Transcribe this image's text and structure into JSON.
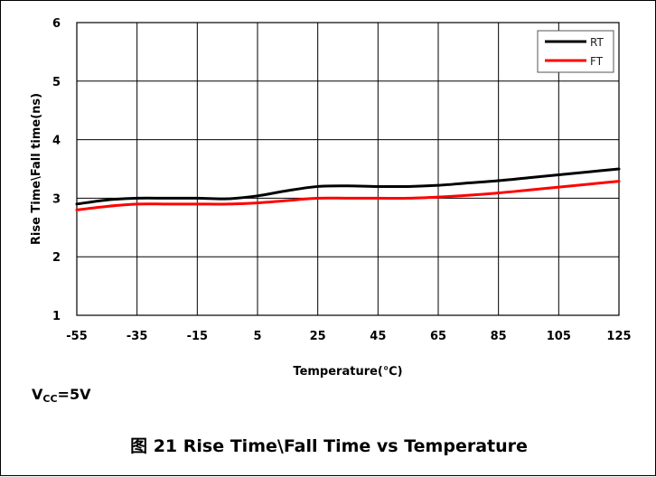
{
  "chart_data": {
    "type": "line",
    "caption": "图 21 Rise Time\\Fall Time vs Temperature",
    "xlabel": "Temperature(℃)",
    "ylabel": "Rise Time\\Fall time(ns)",
    "x": [
      -55,
      -45,
      -35,
      -25,
      -15,
      -5,
      5,
      15,
      25,
      35,
      45,
      55,
      65,
      75,
      85,
      95,
      105,
      115,
      125
    ],
    "x_ticks": [
      "-55",
      "-35",
      "-15",
      "5",
      "25",
      "45",
      "65",
      "85",
      "105",
      "125"
    ],
    "y_ticks": [
      "1",
      "2",
      "3",
      "4",
      "5",
      "6"
    ],
    "xlim": [
      -55,
      125
    ],
    "ylim": [
      1,
      6
    ],
    "grid": true,
    "legend_position": "top-right",
    "series": [
      {
        "name": "RT",
        "color": "#000000",
        "values": [
          2.9,
          2.97,
          3.0,
          3.0,
          3.0,
          2.99,
          3.04,
          3.13,
          3.2,
          3.21,
          3.2,
          3.2,
          3.22,
          3.26,
          3.3,
          3.35,
          3.4,
          3.45,
          3.5
        ]
      },
      {
        "name": "FT",
        "color": "#ff0000",
        "values": [
          2.8,
          2.86,
          2.9,
          2.9,
          2.9,
          2.9,
          2.92,
          2.96,
          3.0,
          3.0,
          3.0,
          3.0,
          3.02,
          3.05,
          3.09,
          3.14,
          3.19,
          3.24,
          3.29
        ]
      }
    ]
  },
  "note": {
    "prefix": "V",
    "subscript": "CC",
    "suffix": "=5V"
  }
}
